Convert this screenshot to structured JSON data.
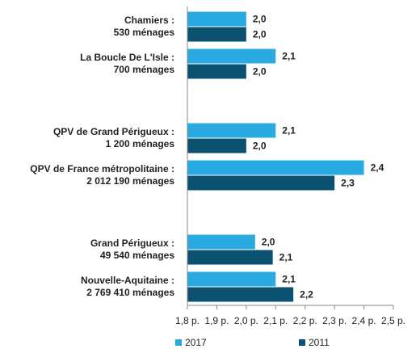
{
  "chart_data": {
    "type": "hbar",
    "categories": [
      "Chamiers :\n530 ménages",
      "La Boucle De L'Isle :\n700 ménages",
      null,
      "QPV de Grand Périgueux :\n1 200 ménages",
      "QPV de France métropolitaine :\n2 012 190 ménages",
      null,
      "Grand Périgueux :\n49 540 ménages",
      "Nouvelle-Aquitaine :\n2 769 410 ménages"
    ],
    "series": [
      {
        "name": "2017",
        "color": "#29abe2",
        "values": [
          2.0,
          2.1,
          null,
          2.1,
          2.4,
          null,
          2.03,
          2.1
        ],
        "value_labels": [
          "2,0",
          "2,1",
          null,
          "2,1",
          "2,4",
          null,
          "2,0",
          "2,1"
        ]
      },
      {
        "name": "2011",
        "color": "#0b5170",
        "values": [
          2.0,
          2.0,
          null,
          2.0,
          2.3,
          null,
          2.09,
          2.16
        ],
        "value_labels": [
          "2,0",
          "2,0",
          null,
          "2,0",
          "2,3",
          null,
          "2,1",
          "2,2"
        ]
      }
    ],
    "xlim": [
      1.8,
      2.5
    ],
    "xticks": [
      {
        "value": 1.8,
        "label": "1,8 p."
      },
      {
        "value": 1.9,
        "label": "1,9 p."
      },
      {
        "value": 2.0,
        "label": "2,0 p."
      },
      {
        "value": 2.1,
        "label": "2,1 p."
      },
      {
        "value": 2.2,
        "label": "2,2 p."
      },
      {
        "value": 2.3,
        "label": "2,3 p."
      },
      {
        "value": 2.4,
        "label": "2,4 p."
      },
      {
        "value": 2.5,
        "label": "2,5 p."
      }
    ],
    "legend": "bottom"
  }
}
